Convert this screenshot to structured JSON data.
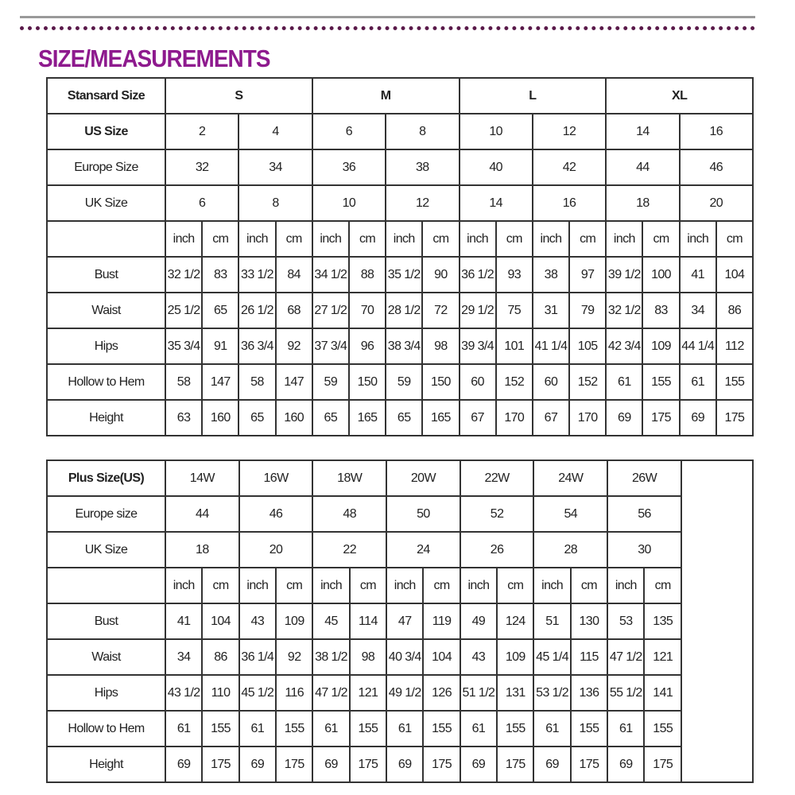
{
  "title": "SIZE/MEASUREMENTS",
  "standard": {
    "header_label": "Stansard Size",
    "sizes": [
      "S",
      "M",
      "L",
      "XL"
    ],
    "size_rows": [
      {
        "label": "US Size",
        "values": [
          "2",
          "4",
          "6",
          "8",
          "10",
          "12",
          "14",
          "16"
        ]
      },
      {
        "label": "Europe Size",
        "values": [
          "32",
          "34",
          "36",
          "38",
          "40",
          "42",
          "44",
          "46"
        ]
      },
      {
        "label": "UK Size",
        "values": [
          "6",
          "8",
          "10",
          "12",
          "14",
          "16",
          "18",
          "20"
        ]
      }
    ],
    "unit_labels": [
      "inch",
      "cm"
    ],
    "measurements": [
      {
        "label": "Bust",
        "values": [
          "32 1/2",
          "83",
          "33 1/2",
          "84",
          "34 1/2",
          "88",
          "35 1/2",
          "90",
          "36 1/2",
          "93",
          "38",
          "97",
          "39 1/2",
          "100",
          "41",
          "104"
        ]
      },
      {
        "label": "Waist",
        "values": [
          "25 1/2",
          "65",
          "26 1/2",
          "68",
          "27 1/2",
          "70",
          "28 1/2",
          "72",
          "29 1/2",
          "75",
          "31",
          "79",
          "32 1/2",
          "83",
          "34",
          "86"
        ]
      },
      {
        "label": "Hips",
        "values": [
          "35 3/4",
          "91",
          "36 3/4",
          "92",
          "37 3/4",
          "96",
          "38 3/4",
          "98",
          "39 3/4",
          "101",
          "41 1/4",
          "105",
          "42 3/4",
          "109",
          "44 1/4",
          "112"
        ]
      },
      {
        "label": "Hollow to Hem",
        "values": [
          "58",
          "147",
          "58",
          "147",
          "59",
          "150",
          "59",
          "150",
          "60",
          "152",
          "60",
          "152",
          "61",
          "155",
          "61",
          "155"
        ]
      },
      {
        "label": "Height",
        "values": [
          "63",
          "160",
          "65",
          "160",
          "65",
          "165",
          "65",
          "165",
          "67",
          "170",
          "67",
          "170",
          "69",
          "175",
          "69",
          "175"
        ]
      }
    ]
  },
  "plus": {
    "header_label": "Plus Size(US)",
    "sizes": [
      "14W",
      "16W",
      "18W",
      "20W",
      "22W",
      "24W",
      "26W"
    ],
    "size_rows": [
      {
        "label": "Europe size",
        "values": [
          "44",
          "46",
          "48",
          "50",
          "52",
          "54",
          "56"
        ]
      },
      {
        "label": "UK Size",
        "values": [
          "18",
          "20",
          "22",
          "24",
          "26",
          "28",
          "30"
        ]
      }
    ],
    "unit_labels": [
      "inch",
      "cm"
    ],
    "measurements": [
      {
        "label": "Bust",
        "values": [
          "41",
          "104",
          "43",
          "109",
          "45",
          "114",
          "47",
          "119",
          "49",
          "124",
          "51",
          "130",
          "53",
          "135"
        ]
      },
      {
        "label": "Waist",
        "values": [
          "34",
          "86",
          "36 1/4",
          "92",
          "38 1/2",
          "98",
          "40 3/4",
          "104",
          "43",
          "109",
          "45 1/4",
          "115",
          "47 1/2",
          "121"
        ]
      },
      {
        "label": "Hips",
        "values": [
          "43 1/2",
          "110",
          "45 1/2",
          "116",
          "47 1/2",
          "121",
          "49 1/2",
          "126",
          "51 1/2",
          "131",
          "53 1/2",
          "136",
          "55 1/2",
          "141"
        ]
      },
      {
        "label": "Hollow to Hem",
        "values": [
          "61",
          "155",
          "61",
          "155",
          "61",
          "155",
          "61",
          "155",
          "61",
          "155",
          "61",
          "155",
          "61",
          "155"
        ]
      },
      {
        "label": "Height",
        "values": [
          "69",
          "175",
          "69",
          "175",
          "69",
          "175",
          "69",
          "175",
          "69",
          "175",
          "69",
          "175",
          "69",
          "175"
        ]
      }
    ]
  }
}
